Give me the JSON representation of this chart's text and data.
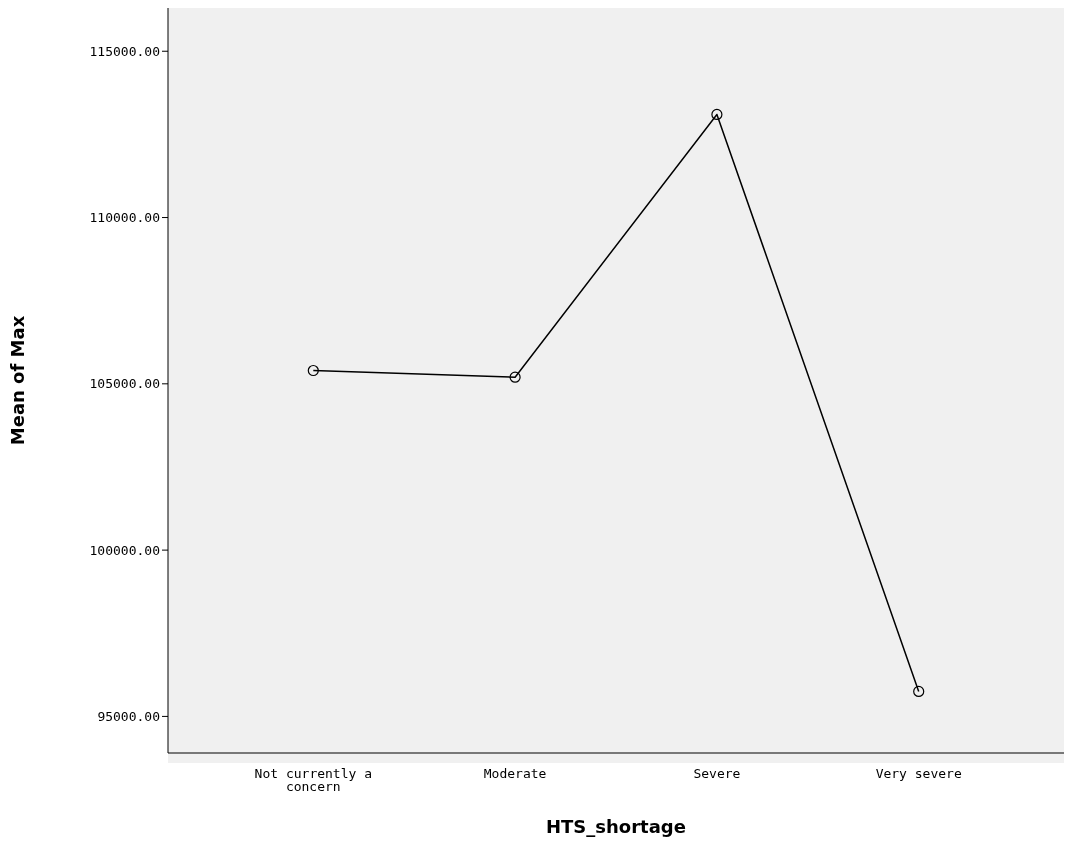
{
  "chart_data": {
    "type": "line",
    "xlabel": "HTS_shortage",
    "ylabel": "Mean of Max",
    "categories": [
      "Not currently a concern",
      "Moderate",
      "Severe",
      "Very severe"
    ],
    "series": [
      {
        "color": "#000000",
        "values": [
          105400,
          105200,
          113100,
          95750
        ]
      }
    ],
    "ylim": [
      93900,
      116300
    ],
    "yticks": [
      {
        "value": 95000,
        "label": "95000.00"
      },
      {
        "value": 100000,
        "label": "100000.00"
      },
      {
        "value": 105000,
        "label": "105000.00"
      },
      {
        "value": 110000,
        "label": "110000.00"
      },
      {
        "value": 115000,
        "label": "115000.00"
      }
    ],
    "grid": false,
    "legend": false,
    "marker": "circle",
    "line_style": "solid"
  }
}
